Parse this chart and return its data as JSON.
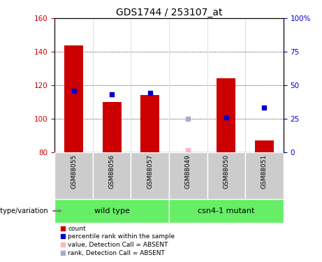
{
  "title": "GDS1744 / 253107_at",
  "samples": [
    "GSM88055",
    "GSM88056",
    "GSM88057",
    "GSM88049",
    "GSM88050",
    "GSM88051"
  ],
  "bar_bottom": 80,
  "ylim_left": [
    80,
    160
  ],
  "ylim_right": [
    0,
    100
  ],
  "yticks_left": [
    80,
    100,
    120,
    140,
    160
  ],
  "yticks_right": [
    0,
    25,
    50,
    75,
    100
  ],
  "ytick_labels_right": [
    "0",
    "25",
    "50",
    "75",
    "100%"
  ],
  "red_bars": [
    144,
    110,
    114,
    null,
    124,
    87
  ],
  "blue_squares": [
    46,
    43,
    44,
    null,
    26,
    33
  ],
  "pink_squares": [
    null,
    null,
    null,
    81,
    null,
    null
  ],
  "lightblue_squares": [
    null,
    null,
    null,
    25,
    null,
    null
  ],
  "red_bar_color": "#CC0000",
  "blue_square_color": "#0000CC",
  "pink_square_color": "#FFB6C1",
  "lightblue_square_color": "#AAAACC",
  "left_tick_color": "#CC0000",
  "right_tick_color": "#0000CC",
  "bar_width": 0.5,
  "group_color": "#66EE66",
  "label_bg_color": "#CCCCCC",
  "groups": [
    {
      "label": "wild type",
      "start": 0,
      "end": 2
    },
    {
      "label": "csn4-1 mutant",
      "start": 3,
      "end": 5
    }
  ],
  "legend_items": [
    {
      "label": "count",
      "color": "#CC0000"
    },
    {
      "label": "percentile rank within the sample",
      "color": "#0000CC"
    },
    {
      "label": "value, Detection Call = ABSENT",
      "color": "#FFB6C1"
    },
    {
      "label": "rank, Detection Call = ABSENT",
      "color": "#AAAACC"
    }
  ]
}
